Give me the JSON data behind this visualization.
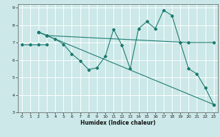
{
  "title": "",
  "xlabel": "Humidex (Indice chaleur)",
  "bg_color": "#cce8e8",
  "grid_color": "#ffffff",
  "line_color": "#1a7a6e",
  "xlim": [
    -0.5,
    23.5
  ],
  "ylim": [
    3,
    9.2
  ],
  "xticks": [
    0,
    1,
    2,
    3,
    4,
    5,
    6,
    7,
    8,
    9,
    10,
    11,
    12,
    13,
    14,
    15,
    16,
    17,
    18,
    19,
    20,
    21,
    22,
    23
  ],
  "yticks": [
    3,
    4,
    5,
    6,
    7,
    8,
    9
  ],
  "series": [
    {
      "x": [
        0,
        1,
        2,
        3
      ],
      "y": [
        6.9,
        6.9,
        6.9,
        6.9
      ]
    },
    {
      "x": [
        2,
        3,
        4,
        5,
        6,
        7,
        8,
        9,
        10,
        11,
        12,
        13,
        14,
        15,
        16,
        17,
        18,
        19,
        20,
        21,
        22,
        23
      ],
      "y": [
        7.6,
        7.4,
        7.2,
        6.9,
        6.35,
        5.95,
        5.45,
        5.55,
        6.2,
        7.75,
        6.85,
        5.5,
        7.8,
        8.2,
        7.8,
        8.85,
        8.55,
        7.0,
        5.5,
        5.2,
        4.4,
        3.45
      ]
    },
    {
      "x": [
        2,
        3,
        20,
        23
      ],
      "y": [
        7.6,
        7.4,
        7.0,
        7.0
      ]
    },
    {
      "x": [
        2,
        3,
        23
      ],
      "y": [
        7.6,
        7.4,
        3.45
      ]
    }
  ]
}
